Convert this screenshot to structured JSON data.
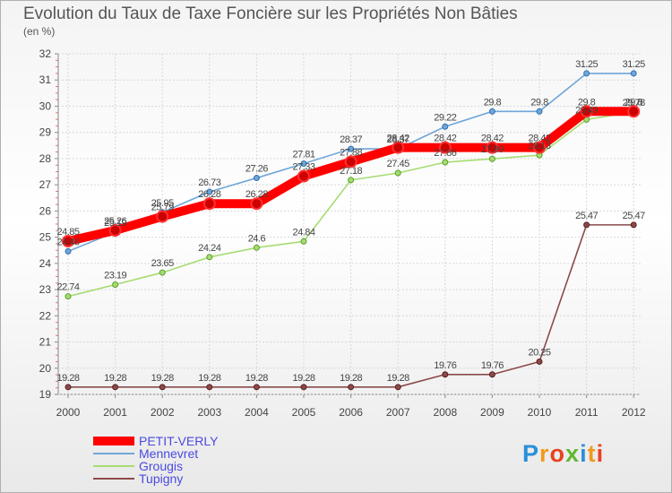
{
  "title": "Evolution du Taux de Taxe Foncière sur les Propriétés Non Bâties",
  "subtitle": "(en %)",
  "logo": {
    "text": "Proxiti",
    "letters": [
      "P",
      "r",
      "o",
      "x",
      "i",
      "t",
      "i"
    ],
    "colors": [
      "#2a8fd8",
      "#f29a1e",
      "#e8421f",
      "#62b82f",
      "#2a8fd8",
      "#f29a1e",
      "#e8421f"
    ]
  },
  "chart_data": {
    "type": "line",
    "x": [
      "2000",
      "2001",
      "2002",
      "2003",
      "2004",
      "2005",
      "2006",
      "2007",
      "2008",
      "2009",
      "2010",
      "2011",
      "2012"
    ],
    "ylim": [
      19,
      32
    ],
    "yticks": [
      "19",
      "20",
      "21",
      "22",
      "23",
      "24",
      "25",
      "26",
      "27",
      "28",
      "29",
      "30",
      "31",
      "32"
    ],
    "grid": true,
    "legend_position": "bottom-left",
    "series": [
      {
        "name": "PETIT-VERLY",
        "color": "#ff0000",
        "labels": [
          "24.85",
          "25.26",
          "25.79",
          "26.28",
          "26.28",
          "27.33",
          "27.88",
          "28.42",
          "28.42",
          "28.42",
          "28.42",
          "29.8",
          "29.8"
        ],
        "values": [
          24.85,
          25.26,
          25.79,
          26.28,
          26.28,
          27.33,
          27.88,
          28.42,
          28.42,
          28.42,
          28.42,
          29.8,
          29.8
        ]
      },
      {
        "name": "Mennevret",
        "color": "#6fa6d8",
        "labels": [
          "24.46",
          "25.19",
          "25.95",
          "26.73",
          "27.26",
          "27.81",
          "28.37",
          "28.37",
          "29.22",
          "29.8",
          "29.8",
          "31.25",
          "31.25"
        ],
        "values": [
          24.46,
          25.19,
          25.95,
          26.73,
          27.26,
          27.81,
          28.37,
          28.37,
          29.22,
          29.8,
          29.8,
          31.25,
          31.25
        ]
      },
      {
        "name": "Grougis",
        "color": "#a6dc72",
        "labels": [
          "22.74",
          "23.19",
          "23.65",
          "24.24",
          "24.6",
          "24.84",
          "27.18",
          "27.45",
          "27.86",
          "27.99",
          "28.13",
          "29.49",
          "29.78"
        ],
        "values": [
          22.74,
          23.19,
          23.65,
          24.24,
          24.6,
          24.84,
          27.18,
          27.45,
          27.86,
          27.99,
          28.13,
          29.49,
          29.78
        ]
      },
      {
        "name": "Tupigny",
        "color": "#8b4a4a",
        "labels": [
          "19.28",
          "19.28",
          "19.28",
          "19.28",
          "19.28",
          "19.28",
          "19.28",
          "19.28",
          "19.76",
          "19.76",
          "20.25",
          "25.47",
          "25.47"
        ],
        "values": [
          19.28,
          19.28,
          19.28,
          19.28,
          19.28,
          19.28,
          19.28,
          19.28,
          19.76,
          19.76,
          20.25,
          25.47,
          25.47
        ]
      }
    ]
  }
}
